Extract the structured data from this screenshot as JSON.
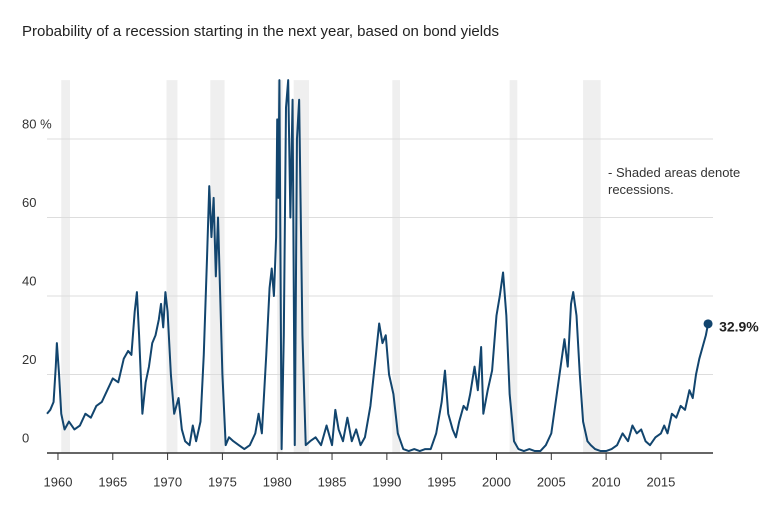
{
  "chart_data": {
    "type": "line",
    "title": "Probability of a recession starting in the next year, based on bond yields",
    "annotation": "- Shaded areas denote recessions.",
    "end_label": "32.9%",
    "xlim": [
      1959,
      2019.75
    ],
    "ylim": [
      0,
      95
    ],
    "xticks": [
      1960,
      1965,
      1970,
      1975,
      1980,
      1985,
      1990,
      1995,
      2000,
      2005,
      2010,
      2015
    ],
    "yticks": [
      0,
      20,
      40,
      60,
      {
        "value": 80,
        "label": "80 %"
      }
    ],
    "grid": true,
    "recession_color": "#efefef",
    "recessions": [
      [
        1960.3,
        1961.1
      ],
      [
        1969.9,
        1970.9
      ],
      [
        1973.9,
        1975.2
      ],
      [
        1980.0,
        1980.5
      ],
      [
        1981.5,
        1982.9
      ],
      [
        1990.5,
        1991.2
      ],
      [
        2001.2,
        2001.9
      ],
      [
        2007.9,
        2009.5
      ]
    ],
    "series": [
      {
        "name": "Probability",
        "color": "#12456e",
        "x": [
          1959.0,
          1959.3,
          1959.6,
          1959.8,
          1959.9,
          1960.1,
          1960.3,
          1960.6,
          1961.0,
          1961.5,
          1962.0,
          1962.5,
          1963.0,
          1963.5,
          1964.0,
          1964.5,
          1965.0,
          1965.5,
          1966.0,
          1966.4,
          1966.7,
          1967.0,
          1967.2,
          1967.4,
          1967.7,
          1968.0,
          1968.3,
          1968.6,
          1968.9,
          1969.2,
          1969.4,
          1969.6,
          1969.8,
          1970.0,
          1970.3,
          1970.6,
          1971.0,
          1971.3,
          1971.6,
          1972.0,
          1972.3,
          1972.6,
          1973.0,
          1973.3,
          1973.6,
          1973.8,
          1974.0,
          1974.2,
          1974.4,
          1974.6,
          1974.8,
          1975.0,
          1975.3,
          1975.6,
          1976.0,
          1976.5,
          1977.0,
          1977.5,
          1978.0,
          1978.3,
          1978.6,
          1979.0,
          1979.3,
          1979.5,
          1979.7,
          1979.9,
          1980.0,
          1980.1,
          1980.2,
          1980.4,
          1980.6,
          1980.8,
          1981.0,
          1981.2,
          1981.4,
          1981.6,
          1981.8,
          1982.0,
          1982.3,
          1982.6,
          1983.0,
          1983.5,
          1984.0,
          1984.5,
          1985.0,
          1985.3,
          1985.6,
          1986.0,
          1986.4,
          1986.8,
          1987.2,
          1987.6,
          1988.0,
          1988.5,
          1989.0,
          1989.3,
          1989.6,
          1989.9,
          1990.2,
          1990.6,
          1991.0,
          1991.5,
          1992.0,
          1992.5,
          1993.0,
          1993.5,
          1994.0,
          1994.5,
          1995.0,
          1995.3,
          1995.6,
          1996.0,
          1996.3,
          1996.6,
          1997.0,
          1997.3,
          1997.6,
          1998.0,
          1998.3,
          1998.6,
          1998.8,
          1999.2,
          1999.6,
          2000.0,
          2000.3,
          2000.6,
          2000.9,
          2001.2,
          2001.6,
          2002.0,
          2002.5,
          2003.0,
          2003.5,
          2004.0,
          2004.5,
          2005.0,
          2005.5,
          2006.0,
          2006.2,
          2006.5,
          2006.8,
          2007.0,
          2007.3,
          2007.6,
          2007.9,
          2008.3,
          2008.6,
          2009.0,
          2009.5,
          2010.0,
          2010.5,
          2011.0,
          2011.5,
          2012.0,
          2012.4,
          2012.8,
          2013.2,
          2013.6,
          2014.0,
          2014.5,
          2015.0,
          2015.3,
          2015.6,
          2016.0,
          2016.4,
          2016.8,
          2017.2,
          2017.6,
          2017.9,
          2018.2,
          2018.5,
          2018.8,
          2019.1,
          2019.3
        ],
        "values": [
          10,
          11,
          13,
          22,
          28,
          20,
          10,
          6,
          8,
          6,
          7,
          10,
          9,
          12,
          13,
          16,
          19,
          18,
          24,
          26,
          25,
          36,
          41,
          30,
          10,
          18,
          22,
          28,
          30,
          34,
          38,
          32,
          41,
          36,
          20,
          10,
          14,
          6,
          3,
          2,
          7,
          3,
          8,
          25,
          50,
          68,
          55,
          65,
          45,
          60,
          40,
          20,
          2,
          4,
          3,
          2,
          1,
          2,
          5,
          10,
          5,
          25,
          42,
          47,
          40,
          55,
          85,
          65,
          95,
          1,
          30,
          88,
          95,
          60,
          90,
          2,
          80,
          90,
          30,
          2,
          3,
          4,
          2,
          7,
          2,
          11,
          6,
          3,
          9,
          3,
          6,
          2,
          4,
          12,
          25,
          33,
          28,
          30,
          20,
          15,
          5,
          1,
          0.5,
          1,
          0.5,
          1,
          1,
          5,
          13,
          21,
          10,
          6,
          4,
          8,
          12,
          11,
          15,
          22,
          16,
          27,
          10,
          16,
          21,
          35,
          40,
          46,
          35,
          15,
          3,
          1,
          0.5,
          1,
          0.5,
          0.5,
          2,
          5,
          15,
          25,
          29,
          22,
          38,
          41,
          35,
          20,
          8,
          3,
          2,
          1,
          0.5,
          0.5,
          1,
          2,
          5,
          3,
          7,
          5,
          6,
          3,
          2,
          4,
          5,
          7,
          5,
          10,
          9,
          12,
          11,
          16,
          14,
          20,
          24,
          27,
          30,
          32.9
        ]
      }
    ]
  }
}
